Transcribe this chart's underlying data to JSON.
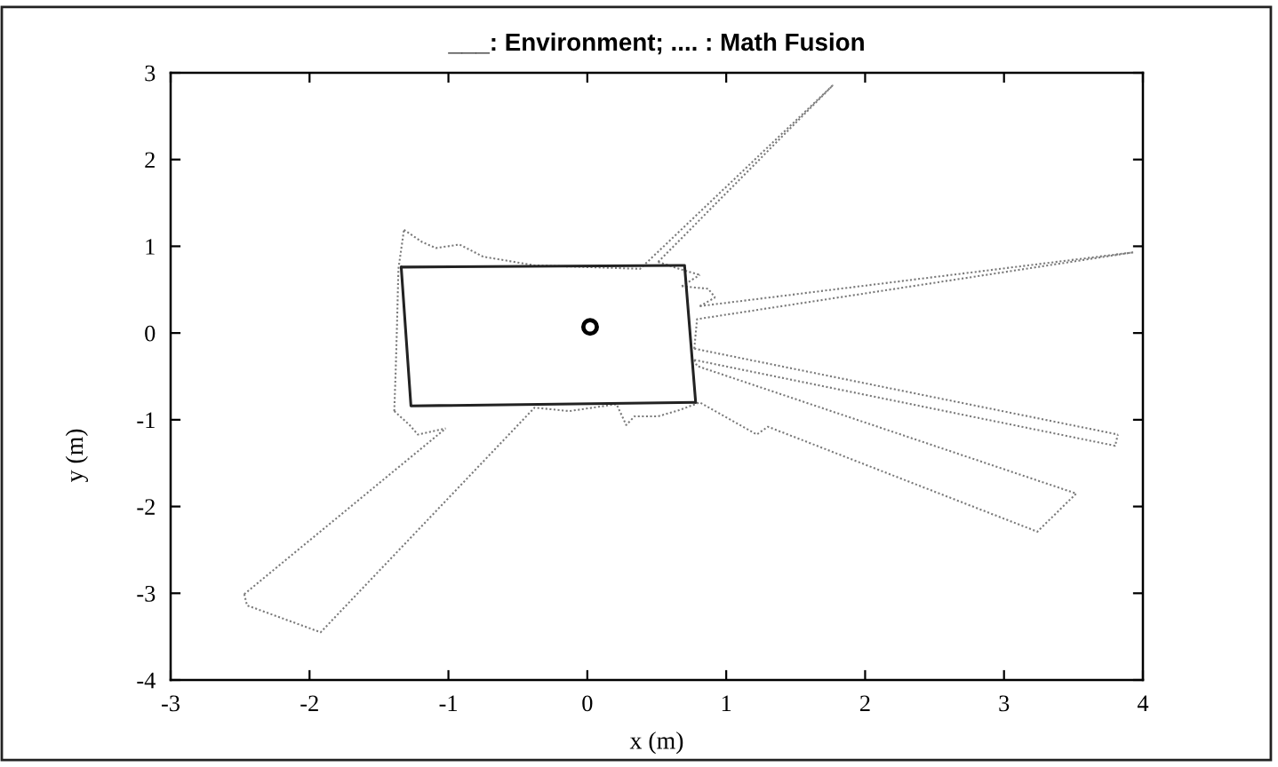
{
  "chart_data": {
    "type": "line",
    "title": "___: Environment; .... : Math Fusion",
    "xlabel": "x (m)",
    "ylabel": "y (m)",
    "xlim": [
      -3,
      4
    ],
    "ylim": [
      -4,
      3
    ],
    "xticks": [
      -3,
      -2,
      -1,
      0,
      1,
      2,
      3,
      4
    ],
    "yticks": [
      -4,
      -3,
      -2,
      -1,
      0,
      1,
      2,
      3
    ],
    "series": [
      {
        "line_style": "solid",
        "marker": "none",
        "color": "#222222",
        "x": [
          -1.34,
          -1.27,
          0.78
        ],
        "values": [
          0.76,
          -0.84,
          -0.8
        ]
      },
      {
        "line_style": "solid",
        "marker": "none",
        "color": "#222222",
        "x": [
          -1.34,
          0.7,
          0.78
        ],
        "values": [
          0.76,
          0.78,
          -0.8
        ]
      },
      {
        "line_style": "dotted",
        "marker": "none",
        "color": "#7a7a7a",
        "x": [
          -1.32,
          -1.19,
          -1.09,
          -0.92,
          -0.75,
          -0.6,
          -0.38,
          0.38,
          1.77
        ],
        "values": [
          1.19,
          1.05,
          0.98,
          1.02,
          0.88,
          0.84,
          0.78,
          0.74,
          2.86
        ]
      },
      {
        "line_style": "dotted",
        "marker": "none",
        "color": "#7a7a7a",
        "x": [
          0.51,
          1.77
        ],
        "values": [
          0.82,
          2.86
        ]
      },
      {
        "line_style": "dotted",
        "marker": "none",
        "color": "#7a7a7a",
        "x": [
          0.51,
          0.66,
          0.81
        ],
        "values": [
          0.82,
          0.74,
          0.67
        ]
      },
      {
        "line_style": "dotted",
        "marker": "none",
        "color": "#7a7a7a",
        "x": [
          0.68,
          0.81
        ],
        "values": [
          0.54,
          0.67
        ]
      },
      {
        "line_style": "dotted",
        "marker": "none",
        "color": "#7a7a7a",
        "x": [
          0.68,
          0.87,
          0.92
        ],
        "values": [
          0.54,
          0.51,
          0.41
        ]
      },
      {
        "line_style": "dotted",
        "marker": "none",
        "color": "#7a7a7a",
        "x": [
          0.81,
          0.92
        ],
        "values": [
          0.31,
          0.41
        ]
      },
      {
        "line_style": "dotted",
        "marker": "none",
        "color": "#7a7a7a",
        "x": [
          0.81,
          3.93
        ],
        "values": [
          0.31,
          0.93
        ]
      },
      {
        "line_style": "dotted",
        "marker": "none",
        "color": "#7a7a7a",
        "x": [
          0.77,
          0.79,
          3.93
        ],
        "values": [
          -0.18,
          0.16,
          0.93
        ]
      },
      {
        "line_style": "dotted",
        "marker": "none",
        "color": "#7a7a7a",
        "x": [
          0.77,
          3.82
        ],
        "values": [
          -0.18,
          -1.17
        ]
      },
      {
        "line_style": "dotted",
        "marker": "none",
        "color": "#7a7a7a",
        "x": [
          0.77,
          3.8,
          3.82
        ],
        "values": [
          -0.31,
          -1.3,
          -1.17
        ]
      },
      {
        "line_style": "dotted",
        "marker": "none",
        "color": "#7a7a7a",
        "x": [
          0.77,
          0.79,
          3.52
        ],
        "values": [
          -0.31,
          -0.38,
          -1.85
        ]
      },
      {
        "line_style": "dotted",
        "marker": "none",
        "color": "#7a7a7a",
        "x": [
          -2.47,
          -2.45,
          -1.92,
          -0.38,
          -0.13,
          0.21,
          0.28,
          0.34,
          0.51,
          0.66,
          0.81,
          1.22,
          1.3,
          3.24,
          3.52
        ],
        "values": [
          -3.01,
          -3.14,
          -3.45,
          -0.86,
          -0.9,
          -0.82,
          -1.06,
          -0.96,
          -0.96,
          -0.89,
          -0.8,
          -1.17,
          -1.08,
          -2.29,
          -1.85
        ]
      },
      {
        "line_style": "dotted",
        "marker": "none",
        "color": "#7a7a7a",
        "x": [
          -2.47,
          -1.02
        ],
        "values": [
          -3.01,
          -1.1
        ]
      },
      {
        "line_style": "dotted",
        "marker": "none",
        "color": "#7a7a7a",
        "x": [
          -1.39,
          -1.28,
          -1.22,
          -1.02
        ],
        "values": [
          -0.9,
          -1.06,
          -1.17,
          -1.1
        ]
      },
      {
        "line_style": "dotted",
        "marker": "none",
        "color": "#7a7a7a",
        "x": [
          -1.39,
          -1.38,
          -1.37,
          -1.36,
          -1.32
        ],
        "values": [
          -0.9,
          -0.45,
          0.1,
          0.74,
          1.19
        ]
      },
      {
        "type": "scatter",
        "marker": "circle",
        "color": "#000000",
        "x": [
          0.02
        ],
        "values": [
          0.07
        ]
      }
    ]
  }
}
